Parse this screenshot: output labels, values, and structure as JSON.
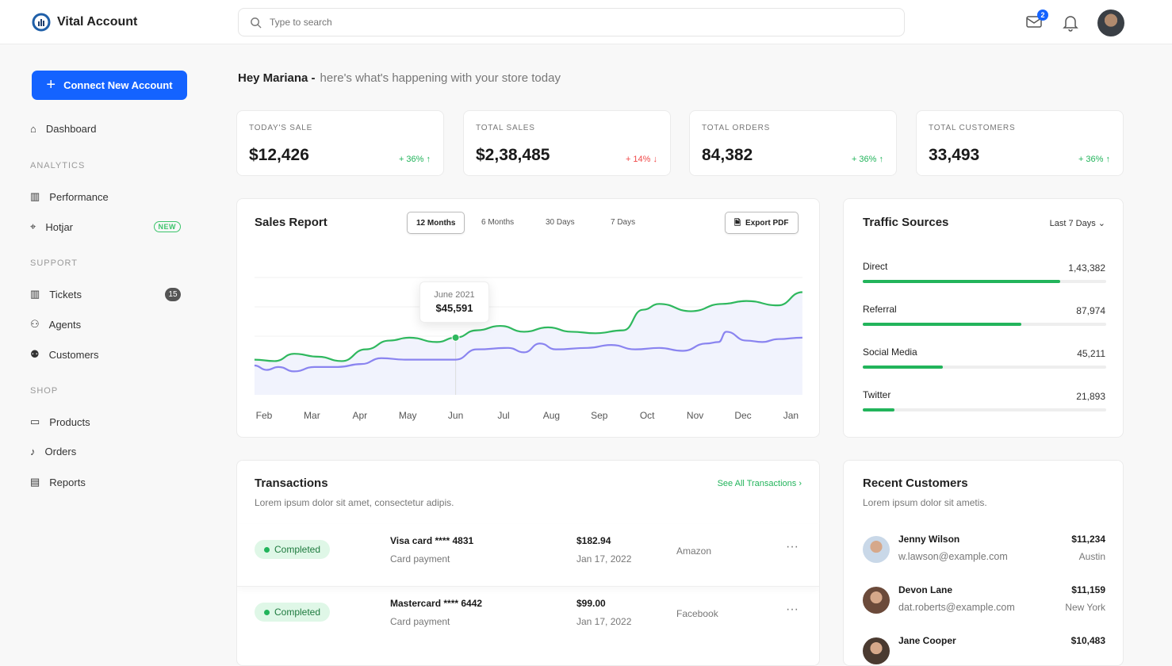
{
  "app": {
    "title": "Vital Account"
  },
  "search": {
    "placeholder": "Type to search"
  },
  "header": {
    "mail_count": "2"
  },
  "sidebar": {
    "connect_label": "Connect New Account",
    "dashboard": "Dashboard",
    "sections": [
      {
        "title": "ANALYTICS",
        "items": [
          {
            "label": "Performance",
            "icon": "bar-chart-icon"
          },
          {
            "label": "Hotjar",
            "icon": "cursor-click-icon",
            "badge": "NEW"
          }
        ]
      },
      {
        "title": "SUPPORT",
        "items": [
          {
            "label": "Tickets",
            "icon": "bar-chart-icon",
            "count": "15"
          },
          {
            "label": "Agents",
            "icon": "user-icon"
          },
          {
            "label": "Customers",
            "icon": "users-icon"
          }
        ]
      },
      {
        "title": "SHOP",
        "items": [
          {
            "label": "Products",
            "icon": "folder-icon"
          },
          {
            "label": "Orders",
            "icon": "bell-icon"
          },
          {
            "label": "Reports",
            "icon": "report-icon"
          }
        ]
      }
    ]
  },
  "greeting": {
    "name": "Hey Mariana -",
    "text": "here's what's happening with your store today"
  },
  "stats": [
    {
      "label": "TODAY'S SALE",
      "value": "$12,426",
      "change": "+ 36% ↑",
      "trend": "up"
    },
    {
      "label": "TOTAL SALES",
      "value": "$2,38,485",
      "change": "+ 14% ↓",
      "trend": "down"
    },
    {
      "label": "TOTAL ORDERS",
      "value": "84,382",
      "change": "+ 36% ↑",
      "trend": "up"
    },
    {
      "label": "TOTAL CUSTOMERS",
      "value": "33,493",
      "change": "+ 36% ↑",
      "trend": "up"
    }
  ],
  "sales_report": {
    "title": "Sales Report",
    "tabs": [
      "12 Months",
      "6 Months",
      "30 Days",
      "7 Days"
    ],
    "active_tab": "12 Months",
    "export_label": "Export PDF",
    "tooltip": {
      "label": "June 2021",
      "value": "$45,591"
    }
  },
  "chart_data": {
    "type": "line",
    "title": "Sales Report",
    "categories": [
      "Feb",
      "Mar",
      "Apr",
      "May",
      "Jun",
      "Jul",
      "Aug",
      "Sep",
      "Oct",
      "Nov",
      "Dec",
      "Jan"
    ],
    "ylim": [
      0,
      100
    ],
    "grid": true,
    "colors": {
      "primary": "#2fb85e",
      "secondary": "#8a84f0"
    },
    "series": [
      {
        "x": [
          -0.2,
          0.22,
          0.63,
          1.13,
          1.62,
          2.12,
          2.62,
          3.03,
          3.61,
          4.0,
          4.44,
          4.93,
          5.43,
          5.93,
          6.42,
          6.92,
          7.5,
          7.91,
          8.25,
          8.91,
          9.57,
          10.07,
          10.73,
          11.24
        ],
        "values": [
          24,
          23,
          28,
          26,
          23,
          31,
          37,
          39,
          36,
          39,
          44,
          47,
          43,
          46,
          43,
          42,
          44,
          58,
          62,
          57,
          62,
          64,
          61,
          70
        ]
      },
      {
        "x": [
          -0.2,
          0.05,
          0.3,
          0.63,
          1.05,
          1.54,
          2.03,
          2.45,
          2.95,
          3.44,
          4.0,
          4.44,
          5.1,
          5.43,
          5.76,
          6.09,
          6.75,
          7.25,
          7.75,
          8.25,
          8.74,
          9.24,
          9.49,
          9.65,
          10.07,
          10.4,
          10.73,
          11.24
        ],
        "values": [
          20,
          17,
          19,
          16,
          19,
          19,
          21,
          25,
          24,
          24,
          24,
          31,
          32,
          29,
          35,
          31,
          32,
          34,
          31,
          32,
          30,
          35,
          36,
          43,
          37,
          36,
          38,
          39
        ]
      }
    ],
    "highlight": {
      "category": "Jun",
      "label": "June 2021",
      "value": "$45,591"
    }
  },
  "traffic": {
    "title": "Traffic Sources",
    "range": "Last 7 Days",
    "items": [
      {
        "label": "Direct",
        "value": "1,43,382",
        "pct": 81
      },
      {
        "label": "Referral",
        "value": "87,974",
        "pct": 65
      },
      {
        "label": "Social Media",
        "value": "45,211",
        "pct": 33
      },
      {
        "label": "Twitter",
        "value": "21,893",
        "pct": 13
      }
    ]
  },
  "transactions": {
    "title": "Transactions",
    "subtitle": "Lorem ipsum dolor sit amet, consectetur adipis.",
    "see_all": "See All Transactions",
    "rows": [
      {
        "status": "Completed",
        "card": "Visa card **** 4831",
        "type": "Card payment",
        "amount": "$182.94",
        "date": "Jan 17, 2022",
        "merchant": "Amazon"
      },
      {
        "status": "Completed",
        "card": "Mastercard **** 6442",
        "type": "Card payment",
        "amount": "$99.00",
        "date": "Jan 17, 2022",
        "merchant": "Facebook"
      }
    ]
  },
  "customers": {
    "title": "Recent Customers",
    "subtitle": "Lorem ipsum dolor sit ametis.",
    "rows": [
      {
        "name": "Jenny Wilson",
        "email": "w.lawson@example.com",
        "amount": "$11,234",
        "city": "Austin"
      },
      {
        "name": "Devon Lane",
        "email": "dat.roberts@example.com",
        "amount": "$11,159",
        "city": "New York"
      },
      {
        "name": "Jane Cooper",
        "email": "",
        "amount": "$10,483",
        "city": ""
      }
    ]
  }
}
